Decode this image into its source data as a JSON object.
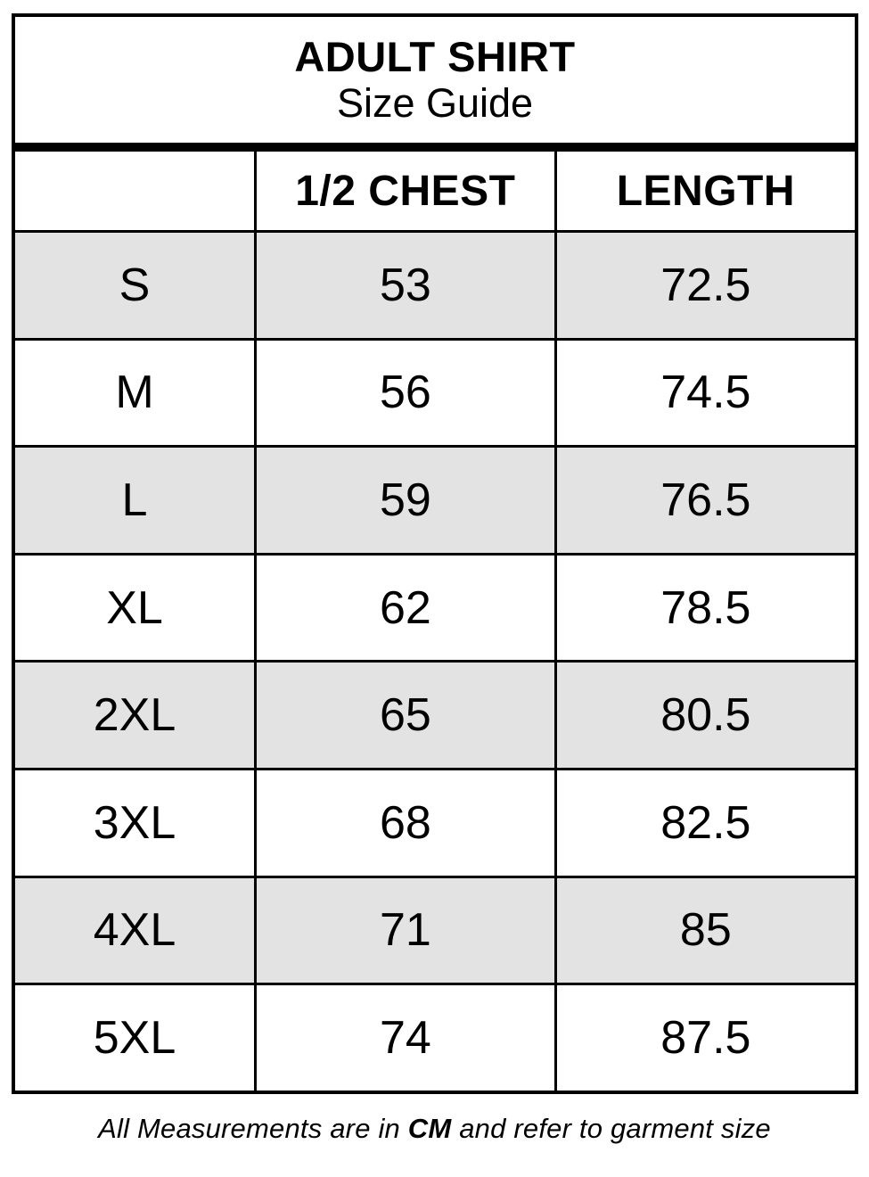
{
  "title": {
    "line1": "ADULT SHIRT",
    "line2": "Size Guide"
  },
  "table": {
    "columns": [
      "",
      "1/2 CHEST",
      "LENGTH"
    ],
    "rows": [
      {
        "size": "S",
        "half_chest": "53",
        "length": "72.5"
      },
      {
        "size": "M",
        "half_chest": "56",
        "length": "74.5"
      },
      {
        "size": "L",
        "half_chest": "59",
        "length": "76.5"
      },
      {
        "size": "XL",
        "half_chest": "62",
        "length": "78.5"
      },
      {
        "size": "2XL",
        "half_chest": "65",
        "length": "80.5"
      },
      {
        "size": "3XL",
        "half_chest": "68",
        "length": "82.5"
      },
      {
        "size": "4XL",
        "half_chest": "71",
        "length": "85"
      },
      {
        "size": "5XL",
        "half_chest": "74",
        "length": "87.5"
      }
    ]
  },
  "footer": {
    "prefix": "All Measurements are in ",
    "unit": "CM",
    "suffix": " and refer to garment size"
  },
  "colors": {
    "row_shade": "#e3e3e3",
    "border": "#000000",
    "background": "#ffffff"
  }
}
